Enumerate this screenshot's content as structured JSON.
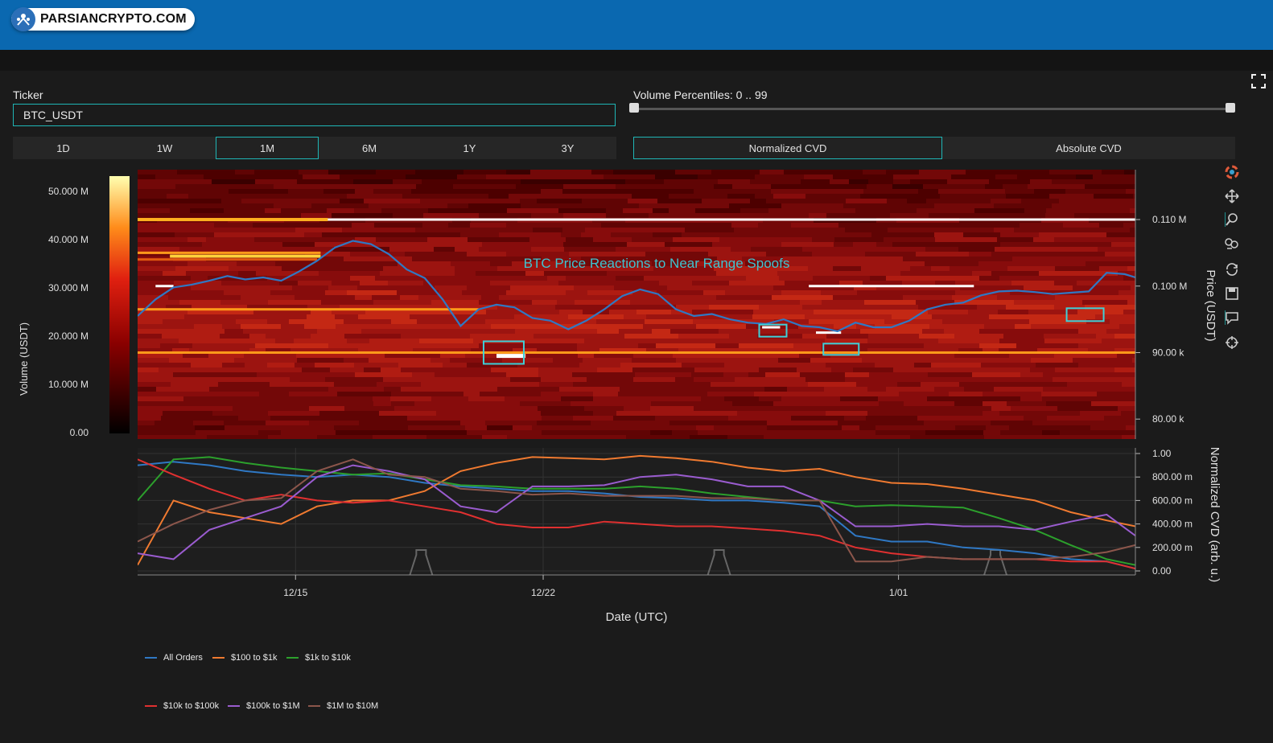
{
  "header": {
    "logo_text": "PARSIANCRYPTO.COM",
    "brand_color": "#0a68b0"
  },
  "controls": {
    "ticker_label": "Ticker",
    "ticker_value": "BTC_USDT",
    "volume_percentiles_label": "Volume Percentiles: 0 .. 99",
    "volume_percentiles_range": [
      0,
      99
    ],
    "timeframes": [
      {
        "label": "1D",
        "active": false
      },
      {
        "label": "1W",
        "active": false
      },
      {
        "label": "1M",
        "active": true
      },
      {
        "label": "6M",
        "active": false
      },
      {
        "label": "1Y",
        "active": false
      },
      {
        "label": "3Y",
        "active": false
      }
    ],
    "cvd_modes": [
      {
        "label": "Normalized CVD",
        "active": true
      },
      {
        "label": "Absolute CVD",
        "active": false
      }
    ]
  },
  "toolbar": {
    "icons": [
      "logo-icon",
      "pan-icon",
      "zoom-icon",
      "wheel-zoom-icon",
      "reset-icon",
      "save-icon",
      "hover-icon",
      "crosshair-icon"
    ]
  },
  "chart_data": [
    {
      "type": "heatmap",
      "annotation": "BTC Price Reactions to Near Range Spoofs",
      "colorbar": {
        "label": "Volume (USDT)",
        "ticks": [
          "50.000 M",
          "40.000 M",
          "30.000 M",
          "20.000 M",
          "10.000 M",
          "0.00"
        ],
        "range": [
          0,
          53000000
        ]
      },
      "y_right": {
        "label": "Price (USDT)",
        "ticks": [
          "0.110 M",
          "0.100 M",
          "90.00 k",
          "80.00 k"
        ],
        "range": [
          77000,
          117500
        ]
      },
      "price_series": {
        "name": "BTC price",
        "color": "#2f78c4",
        "x_day": [
          0,
          0.5,
          1,
          1.5,
          2,
          2.5,
          3,
          3.5,
          4,
          4.5,
          5,
          5.5,
          6,
          6.5,
          7,
          7.5,
          8,
          8.5,
          9,
          9.5,
          10,
          10.5,
          11,
          11.5,
          12,
          12.5,
          13,
          13.5,
          14,
          14.5,
          15,
          15.5,
          16,
          16.5,
          17,
          17.5,
          18,
          18.5,
          19,
          19.5,
          20,
          20.5,
          21,
          21.5,
          22,
          22.5,
          23,
          23.5,
          24,
          24.5,
          25,
          25.5,
          26,
          26.5,
          27,
          27.5,
          27.8
        ],
        "price": [
          95500,
          98000,
          99800,
          100200,
          100800,
          101500,
          101000,
          101300,
          100800,
          102200,
          103800,
          105800,
          106800,
          106300,
          104800,
          102500,
          101200,
          98000,
          94000,
          96500,
          97200,
          96800,
          95200,
          94800,
          93500,
          94800,
          96500,
          98500,
          99500,
          98800,
          96500,
          95500,
          95800,
          95000,
          94500,
          94300,
          95000,
          94000,
          93800,
          93200,
          94500,
          93800,
          93800,
          94800,
          96500,
          97200,
          97500,
          98600,
          99200,
          99300,
          99100,
          98800,
          99000,
          99200,
          102000,
          101800,
          101300
        ]
      },
      "spoof_boxes": [
        {
          "day": 10.2,
          "price": 90000
        },
        {
          "day": 17.7,
          "price": 93300
        },
        {
          "day": 19.6,
          "price": 90500
        },
        {
          "day": 26.4,
          "price": 95700
        }
      ]
    },
    {
      "type": "line",
      "xlabel": "Date (UTC)",
      "ylabel": "Normalized CVD (arb. u.)",
      "x_ticks": [
        {
          "day": 4.4,
          "label": "12/15"
        },
        {
          "day": 11.3,
          "label": "12/22"
        },
        {
          "day": 21.2,
          "label": "1/01"
        }
      ],
      "y_ticks": [
        "1.00",
        "800.00 m",
        "600.00 m",
        "400.00 m",
        "200.00 m",
        "0.00"
      ],
      "ylim": [
        0,
        1
      ],
      "xlim": [
        0,
        27.8
      ],
      "legend_position": "bottom-left",
      "x_day": [
        0,
        1,
        2,
        3,
        4,
        5,
        6,
        7,
        8,
        9,
        10,
        11,
        12,
        13,
        14,
        15,
        16,
        17,
        18,
        19,
        20,
        21,
        22,
        23,
        24,
        25,
        26,
        27,
        27.8
      ],
      "series": [
        {
          "name": "All Orders",
          "color": "#2f78c4",
          "values": [
            0.9,
            0.93,
            0.9,
            0.85,
            0.82,
            0.8,
            0.82,
            0.8,
            0.75,
            0.72,
            0.7,
            0.68,
            0.68,
            0.66,
            0.63,
            0.62,
            0.6,
            0.6,
            0.58,
            0.55,
            0.3,
            0.25,
            0.25,
            0.2,
            0.18,
            0.15,
            0.1,
            0.08,
            0.02
          ]
        },
        {
          "name": "$100 to $1k",
          "color": "#f07a30",
          "values": [
            0.05,
            0.6,
            0.5,
            0.45,
            0.4,
            0.55,
            0.6,
            0.6,
            0.68,
            0.85,
            0.92,
            0.97,
            0.96,
            0.95,
            0.98,
            0.96,
            0.93,
            0.88,
            0.85,
            0.87,
            0.8,
            0.75,
            0.74,
            0.7,
            0.65,
            0.6,
            0.5,
            0.43,
            0.38
          ]
        },
        {
          "name": "$1k to $10k",
          "color": "#2ca02c",
          "values": [
            0.6,
            0.95,
            0.97,
            0.92,
            0.88,
            0.85,
            0.82,
            0.83,
            0.78,
            0.73,
            0.72,
            0.7,
            0.7,
            0.7,
            0.72,
            0.7,
            0.66,
            0.63,
            0.6,
            0.6,
            0.55,
            0.56,
            0.55,
            0.54,
            0.45,
            0.35,
            0.22,
            0.1,
            0.05
          ]
        },
        {
          "name": "$10k to $100k",
          "color": "#e03030",
          "values": [
            0.95,
            0.82,
            0.7,
            0.6,
            0.65,
            0.6,
            0.58,
            0.6,
            0.55,
            0.5,
            0.4,
            0.37,
            0.37,
            0.42,
            0.4,
            0.38,
            0.38,
            0.36,
            0.34,
            0.3,
            0.2,
            0.15,
            0.12,
            0.1,
            0.1,
            0.1,
            0.08,
            0.08,
            0.02
          ]
        },
        {
          "name": "$100k to $1M",
          "color": "#9a5ccf",
          "values": [
            0.15,
            0.1,
            0.35,
            0.45,
            0.55,
            0.8,
            0.9,
            0.85,
            0.78,
            0.55,
            0.5,
            0.72,
            0.72,
            0.73,
            0.8,
            0.82,
            0.78,
            0.72,
            0.72,
            0.6,
            0.38,
            0.38,
            0.4,
            0.38,
            0.38,
            0.35,
            0.42,
            0.48,
            0.3
          ]
        },
        {
          "name": "$1M to $10M",
          "color": "#8c564b",
          "values": [
            0.25,
            0.4,
            0.52,
            0.6,
            0.62,
            0.85,
            0.95,
            0.82,
            0.8,
            0.7,
            0.68,
            0.65,
            0.66,
            0.64,
            0.64,
            0.64,
            0.62,
            0.62,
            0.6,
            0.6,
            0.08,
            0.08,
            0.12,
            0.1,
            0.1,
            0.1,
            0.12,
            0.16,
            0.22
          ]
        }
      ]
    }
  ]
}
